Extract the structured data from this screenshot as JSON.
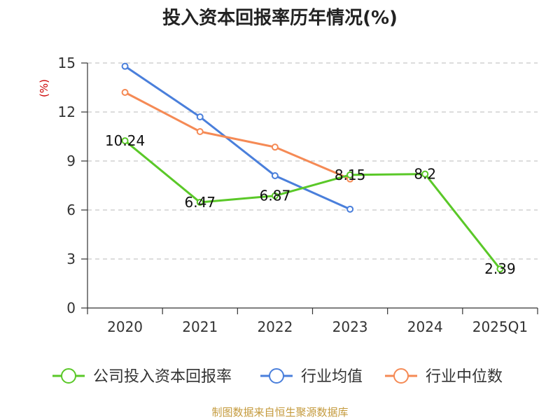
{
  "chart_data": {
    "type": "line",
    "title": "投入资本回报率历年情况(%)",
    "ylabel": "(%)",
    "categories": [
      "2020",
      "2021",
      "2022",
      "2023",
      "2024",
      "2025Q1"
    ],
    "ylim": [
      0,
      15
    ],
    "yticks": [
      0,
      3,
      6,
      9,
      12,
      15
    ],
    "grid": true,
    "legend_position": "bottom",
    "series": [
      {
        "name": "公司投入资本回报率",
        "color": "#5ac828",
        "values": [
          10.24,
          6.47,
          6.87,
          8.15,
          8.2,
          2.39
        ],
        "labels": [
          "10.24",
          "6.47",
          "6.87",
          "8.15",
          "8.2",
          "2.39"
        ],
        "show_labels": true
      },
      {
        "name": "行业均值",
        "color": "#4a7fdb",
        "values": [
          14.8,
          11.7,
          8.1,
          6.05,
          null,
          null
        ],
        "show_labels": false
      },
      {
        "name": "行业中位数",
        "color": "#f58a55",
        "values": [
          13.2,
          10.8,
          9.85,
          7.9,
          null,
          null
        ],
        "show_labels": false
      }
    ]
  },
  "colors": {
    "ylabel": "#cc0000",
    "source": "#c49a3c",
    "grid": "#c8c8c8",
    "axis": "#333333"
  },
  "source_text": "制图数据来自恒生聚源数据库"
}
